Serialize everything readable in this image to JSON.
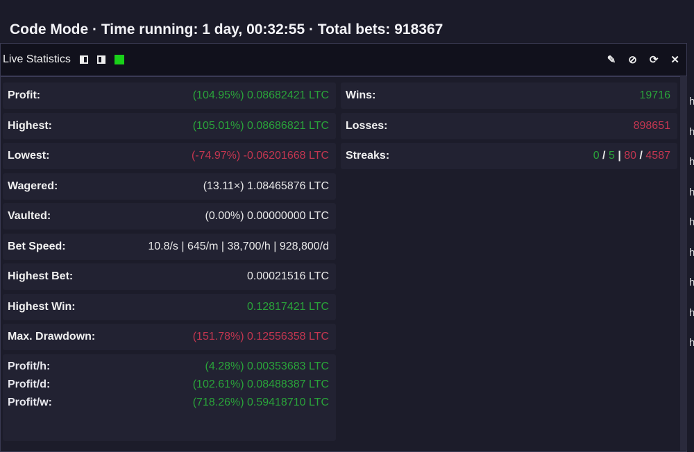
{
  "header": {
    "title": "Code Mode · Time running: 1 day, 00:32:55 · Total bets: 918367"
  },
  "panel": {
    "title": "Live Statistics",
    "icons": [
      "layout-left-icon",
      "layout-right-icon",
      "green-status-square-icon",
      "edit-icon",
      "hide-icon",
      "refresh-icon",
      "close-icon"
    ],
    "tools": [
      "✎",
      "⊘",
      "⟳",
      "✕"
    ]
  },
  "left": [
    {
      "label": "Profit:",
      "value": "(104.95%) 0.08682421 LTC",
      "color": "g"
    },
    {
      "label": "Highest:",
      "value": "(105.01%) 0.08686821 LTC",
      "color": "g"
    },
    {
      "label": "Lowest:",
      "value": "(-74.97%) -0.06201668 LTC",
      "color": "r"
    },
    {
      "label": "Wagered:",
      "value": "(13.11×) 1.08465876 LTC",
      "color": "w"
    },
    {
      "label": "Vaulted:",
      "value": "(0.00%) 0.00000000 LTC",
      "color": "w"
    },
    {
      "label": "Bet Speed:",
      "value": "10.8/s | 645/m | 38,700/h | 928,800/d",
      "color": "w"
    },
    {
      "label": "Highest Bet:",
      "value": "0.00021516 LTC",
      "color": "w"
    },
    {
      "label": "Highest Win:",
      "value": "0.12817421 LTC",
      "color": "g"
    },
    {
      "label": "Max. Drawdown:",
      "value": "(151.78%) 0.12556358 LTC",
      "color": "r"
    }
  ],
  "profit_rates": [
    {
      "label": "Profit/h:",
      "value": "(4.28%) 0.00353683 LTC"
    },
    {
      "label": "Profit/d:",
      "value": "(102.61%) 0.08488387 LTC"
    },
    {
      "label": "Profit/w:",
      "value": "(718.26%) 0.59418710 LTC"
    }
  ],
  "right": {
    "wins_label": "Wins:",
    "wins": "19716",
    "losses_label": "Losses:",
    "losses": "898651",
    "streaks_label": "Streaks:",
    "streak_a": "0",
    "sep1": "/",
    "streak_b": "5",
    "sep2": "|",
    "streak_c": "80",
    "sep3": "/",
    "streak_d": "4587"
  },
  "background_letters": [
    "h",
    "h",
    "h",
    "h",
    "h",
    "h",
    "h",
    "h",
    "h"
  ],
  "colors": {
    "green": "#2aa43a",
    "red": "#c43650",
    "status": "#19d119"
  }
}
